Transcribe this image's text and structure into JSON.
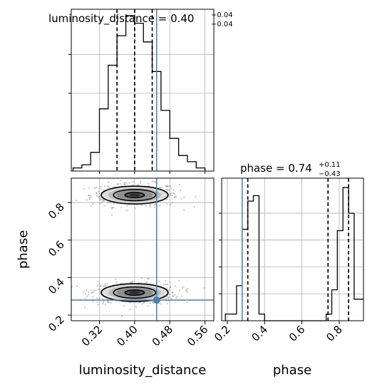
{
  "chart_data": {
    "type": "corner",
    "grid": true,
    "truth_color": "#4682b4",
    "truth": {
      "luminosity_distance": 0.45,
      "phase": 0.28
    },
    "panels": [
      {
        "id": "hist_luminosity_distance",
        "type": "histogram",
        "title": {
          "param": "luminosity_distance",
          "value": "0.40",
          "upper": "+0.04",
          "lower": "−0.04"
        },
        "xlim": [
          0.256,
          0.58
        ],
        "quantiles": [
          0.36,
          0.4,
          0.44
        ],
        "truth": 0.45,
        "bin_edges": [
          0.26,
          0.28,
          0.3,
          0.32,
          0.34,
          0.36,
          0.38,
          0.4,
          0.42,
          0.44,
          0.46,
          0.48,
          0.5,
          0.52,
          0.54,
          0.56
        ],
        "counts": [
          0.02,
          0.04,
          0.12,
          0.4,
          0.68,
          0.87,
          1.0,
          0.95,
          0.83,
          0.64,
          0.39,
          0.21,
          0.1,
          0.06,
          0.02
        ]
      },
      {
        "id": "hist_phase",
        "type": "histogram",
        "title": {
          "param": "phase",
          "value": "0.74",
          "upper": "+0.11",
          "lower": "−0.43"
        },
        "xlim": [
          0.17,
          0.93
        ],
        "quantiles": [
          0.31,
          0.74,
          0.85
        ],
        "truth": 0.28,
        "bin_edges": [
          0.19,
          0.22,
          0.25,
          0.28,
          0.31,
          0.34,
          0.37,
          0.4,
          0.43,
          0.46,
          0.49,
          0.52,
          0.55,
          0.58,
          0.61,
          0.64,
          0.67,
          0.7,
          0.73,
          0.76,
          0.79,
          0.82,
          0.85,
          0.88,
          0.91,
          0.94
        ],
        "counts": [
          0.05,
          0.05,
          0.26,
          0.68,
          0.89,
          0.93,
          0.05,
          0.0,
          0.0,
          0.0,
          0.0,
          0.0,
          0.0,
          0.0,
          0.0,
          0.0,
          0.0,
          0.0,
          0.05,
          0.23,
          0.67,
          0.99,
          0.8,
          0.16,
          0.16
        ]
      },
      {
        "id": "joint",
        "type": "2d_density",
        "xlim": [
          0.256,
          0.58
        ],
        "ylim": [
          0.17,
          0.93
        ],
        "xlabel": "luminosity_distance",
        "ylabel": "phase",
        "xticks": [
          "0.32",
          "0.40",
          "0.48",
          "0.56"
        ],
        "yticks": [
          "0.2",
          "0.4",
          "0.6",
          "0.8"
        ],
        "modes": [
          {
            "x": 0.4,
            "y": 0.84,
            "sx": 0.04,
            "sy": 0.025
          },
          {
            "x": 0.4,
            "y": 0.32,
            "sx": 0.04,
            "sy": 0.025
          }
        ],
        "contour_scales": [
          0.55,
          1.2,
          1.9
        ]
      }
    ],
    "phase_axis": {
      "xlabel": "phase",
      "xticks": [
        "0.2",
        "0.4",
        "0.6",
        "0.8"
      ]
    }
  }
}
